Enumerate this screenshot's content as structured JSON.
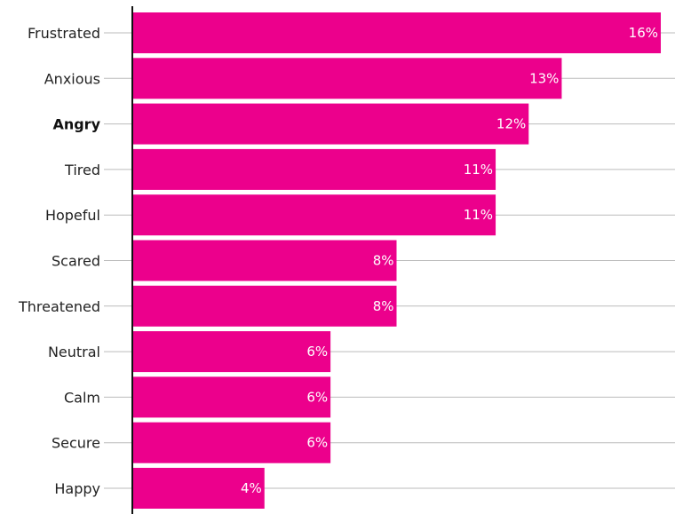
{
  "chart_data": {
    "type": "bar",
    "orientation": "horizontal",
    "categories": [
      "Frustrated",
      "Anxious",
      "Angry",
      "Tired",
      "Hopeful",
      "Scared",
      "Threatened",
      "Neutral",
      "Calm",
      "Secure",
      "Happy"
    ],
    "values": [
      16,
      13,
      12,
      11,
      11,
      8,
      8,
      6,
      6,
      6,
      4
    ],
    "value_labels": [
      "16%",
      "13%",
      "12%",
      "11%",
      "11%",
      "8%",
      "8%",
      "6%",
      "6%",
      "6%",
      "4%"
    ],
    "highlighted_category": "Angry",
    "bar_color": "#ec008c",
    "value_label_color": "#ffffff",
    "grid": true,
    "title": "",
    "xlabel": "",
    "ylabel": ""
  }
}
